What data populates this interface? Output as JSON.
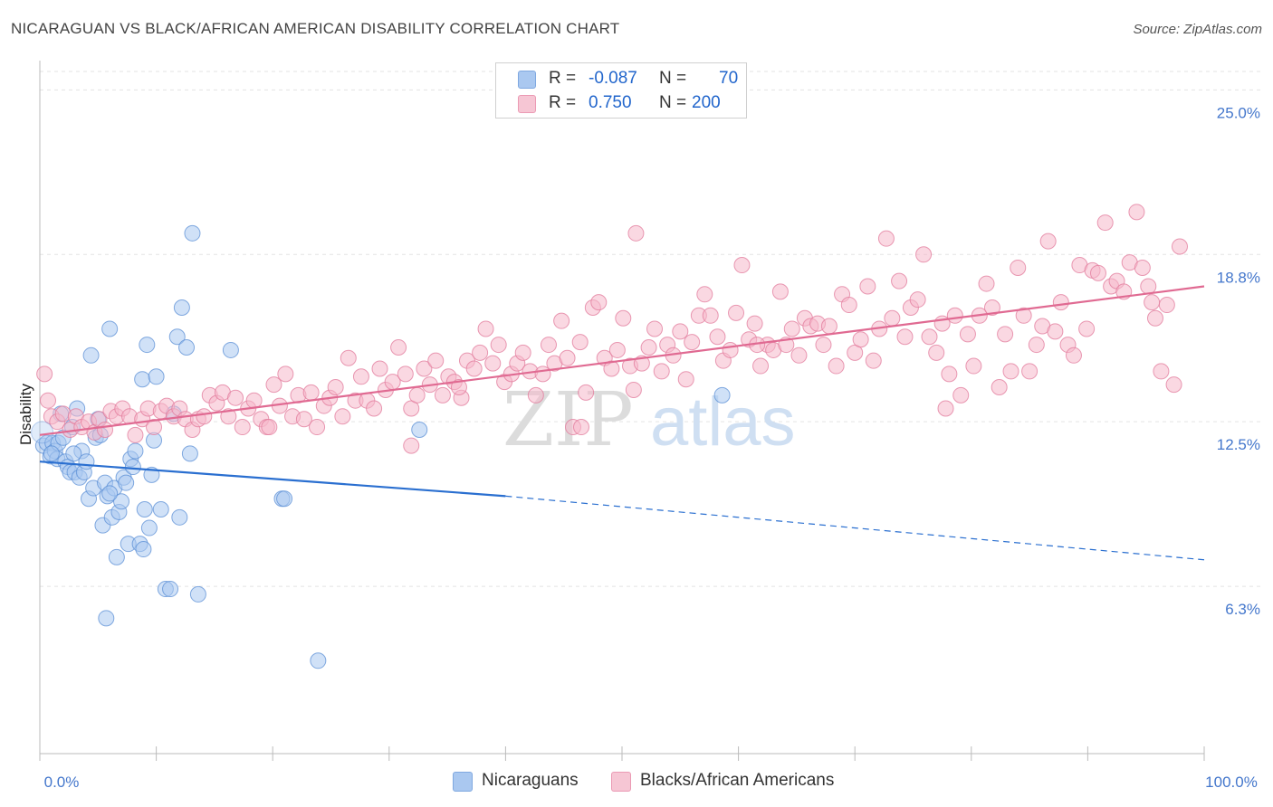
{
  "header": {
    "title": "NICARAGUAN VS BLACK/AFRICAN AMERICAN DISABILITY CORRELATION CHART",
    "source": "Source: ZipAtlas.com"
  },
  "watermark": {
    "zip": "ZIP",
    "atlas": "atlas"
  },
  "legend": {
    "rows": [
      {
        "r_label": "R =",
        "r_value": "-0.087",
        "n_label": "N =",
        "n_value": "70",
        "color": "#aac8f0"
      },
      {
        "r_label": "R =",
        "r_value": "0.750",
        "n_label": "N =",
        "n_value": "200",
        "color": "#f6b8cb"
      }
    ]
  },
  "bottom_legend": {
    "items": [
      {
        "label": "Nicaraguans",
        "color": "#aac8f0"
      },
      {
        "label": "Blacks/African Americans",
        "color": "#f6b8cb"
      }
    ]
  },
  "chart_data": {
    "type": "scatter",
    "title": "NICARAGUAN VS BLACK/AFRICAN AMERICAN DISABILITY CORRELATION CHART",
    "xlabel": "",
    "ylabel": "Disability",
    "xlim": [
      0,
      100
    ],
    "ylim": [
      0,
      26
    ],
    "x_tick_labels": [
      "0.0%",
      "100.0%"
    ],
    "y_ticks": [
      6.3,
      12.5,
      18.8,
      25.0
    ],
    "y_tick_labels": [
      "6.3%",
      "12.5%",
      "18.8%",
      "25.0%"
    ],
    "grid": true,
    "legend_position": "top-center",
    "series": [
      {
        "name": "Nicaraguans",
        "color": "#5b8fd6",
        "fill": "#aac8f0",
        "R": -0.087,
        "N": 70,
        "trend": {
          "x0": 0,
          "y0": 11.0,
          "x1": 40,
          "y1": 9.7,
          "dash_to_x": 100,
          "dash_to_y": 7.3
        },
        "points": [
          [
            0.3,
            11.6
          ],
          [
            0.6,
            11.7
          ],
          [
            0.9,
            11.2
          ],
          [
            1.1,
            11.7
          ],
          [
            1.3,
            11.4
          ],
          [
            1.5,
            11.1
          ],
          [
            1.6,
            11.7
          ],
          [
            1.8,
            12.8
          ],
          [
            2.0,
            11.9
          ],
          [
            2.2,
            11.0
          ],
          [
            2.4,
            10.8
          ],
          [
            2.6,
            10.6
          ],
          [
            2.8,
            12.3
          ],
          [
            3.0,
            10.6
          ],
          [
            3.2,
            13.0
          ],
          [
            3.4,
            10.4
          ],
          [
            3.6,
            11.4
          ],
          [
            3.8,
            10.6
          ],
          [
            4.0,
            11.0
          ],
          [
            4.2,
            9.6
          ],
          [
            4.4,
            15.0
          ],
          [
            4.6,
            10.0
          ],
          [
            4.8,
            11.9
          ],
          [
            5.0,
            12.6
          ],
          [
            5.2,
            12.0
          ],
          [
            5.4,
            8.6
          ],
          [
            5.6,
            10.2
          ],
          [
            5.8,
            9.7
          ],
          [
            6.0,
            16.0
          ],
          [
            6.2,
            8.9
          ],
          [
            6.4,
            10.0
          ],
          [
            6.6,
            7.4
          ],
          [
            6.8,
            9.1
          ],
          [
            7.0,
            9.5
          ],
          [
            7.2,
            10.4
          ],
          [
            7.6,
            7.9
          ],
          [
            7.8,
            11.1
          ],
          [
            8.0,
            10.8
          ],
          [
            8.2,
            11.4
          ],
          [
            8.6,
            7.9
          ],
          [
            8.8,
            14.1
          ],
          [
            8.9,
            7.7
          ],
          [
            9.0,
            9.2
          ],
          [
            9.2,
            15.4
          ],
          [
            9.4,
            8.5
          ],
          [
            9.6,
            10.5
          ],
          [
            9.8,
            11.8
          ],
          [
            10.0,
            14.2
          ],
          [
            10.4,
            9.2
          ],
          [
            10.8,
            6.2
          ],
          [
            11.2,
            6.2
          ],
          [
            11.5,
            12.8
          ],
          [
            11.8,
            15.7
          ],
          [
            12.0,
            8.9
          ],
          [
            12.2,
            16.8
          ],
          [
            12.6,
            15.3
          ],
          [
            12.9,
            11.3
          ],
          [
            13.1,
            19.6
          ],
          [
            13.6,
            6.0
          ],
          [
            16.4,
            15.2
          ],
          [
            20.8,
            9.6
          ],
          [
            21.0,
            9.6
          ],
          [
            23.9,
            3.5
          ],
          [
            32.6,
            12.2
          ],
          [
            58.6,
            13.5
          ],
          [
            5.7,
            5.1
          ],
          [
            6.0,
            9.8
          ],
          [
            7.4,
            10.2
          ],
          [
            1.0,
            11.3
          ],
          [
            2.9,
            11.3
          ]
        ]
      },
      {
        "name": "Blacks/African Americans",
        "color": "#e2799b",
        "fill": "#f6b8cb",
        "R": 0.75,
        "N": 200,
        "trend": {
          "x0": 0,
          "y0": 12.0,
          "x1": 100,
          "y1": 17.6
        },
        "points": [
          [
            0.4,
            14.3
          ],
          [
            0.7,
            13.3
          ],
          [
            1.0,
            12.7
          ],
          [
            1.5,
            12.5
          ],
          [
            2.0,
            12.8
          ],
          [
            2.6,
            12.2
          ],
          [
            3.1,
            12.7
          ],
          [
            3.6,
            12.3
          ],
          [
            4.2,
            12.5
          ],
          [
            4.7,
            12.1
          ],
          [
            5.1,
            12.6
          ],
          [
            5.6,
            12.2
          ],
          [
            6.1,
            12.9
          ],
          [
            6.6,
            12.7
          ],
          [
            7.1,
            13.0
          ],
          [
            7.7,
            12.7
          ],
          [
            8.2,
            12.0
          ],
          [
            8.8,
            12.6
          ],
          [
            9.3,
            13.0
          ],
          [
            9.8,
            12.3
          ],
          [
            10.4,
            12.9
          ],
          [
            10.9,
            13.1
          ],
          [
            11.5,
            12.7
          ],
          [
            12.0,
            13.0
          ],
          [
            12.5,
            12.6
          ],
          [
            13.1,
            12.2
          ],
          [
            13.6,
            12.6
          ],
          [
            14.1,
            12.7
          ],
          [
            14.6,
            13.5
          ],
          [
            15.2,
            13.2
          ],
          [
            15.7,
            13.6
          ],
          [
            16.2,
            12.7
          ],
          [
            16.8,
            13.4
          ],
          [
            17.4,
            12.3
          ],
          [
            17.9,
            13.0
          ],
          [
            18.4,
            13.3
          ],
          [
            19.0,
            12.6
          ],
          [
            19.5,
            12.3
          ],
          [
            20.1,
            13.9
          ],
          [
            20.6,
            13.1
          ],
          [
            21.1,
            14.3
          ],
          [
            21.7,
            12.7
          ],
          [
            22.2,
            13.5
          ],
          [
            22.7,
            12.6
          ],
          [
            23.3,
            13.6
          ],
          [
            23.8,
            12.3
          ],
          [
            24.4,
            13.1
          ],
          [
            24.9,
            13.4
          ],
          [
            25.4,
            13.8
          ],
          [
            26.0,
            12.7
          ],
          [
            26.5,
            14.9
          ],
          [
            27.1,
            13.3
          ],
          [
            27.6,
            14.2
          ],
          [
            28.1,
            13.3
          ],
          [
            28.7,
            13.0
          ],
          [
            29.2,
            14.5
          ],
          [
            29.7,
            13.7
          ],
          [
            30.3,
            14.0
          ],
          [
            30.8,
            15.3
          ],
          [
            31.4,
            14.3
          ],
          [
            31.9,
            13.0
          ],
          [
            32.4,
            13.5
          ],
          [
            33.0,
            14.5
          ],
          [
            33.5,
            13.9
          ],
          [
            34.0,
            14.8
          ],
          [
            34.6,
            13.5
          ],
          [
            35.1,
            14.2
          ],
          [
            35.6,
            14.0
          ],
          [
            36.2,
            13.4
          ],
          [
            36.7,
            14.8
          ],
          [
            37.3,
            14.5
          ],
          [
            37.8,
            15.1
          ],
          [
            38.3,
            16.0
          ],
          [
            38.9,
            14.7
          ],
          [
            39.4,
            15.4
          ],
          [
            39.9,
            14.0
          ],
          [
            40.5,
            14.3
          ],
          [
            41.0,
            14.7
          ],
          [
            41.5,
            15.1
          ],
          [
            42.1,
            14.4
          ],
          [
            42.6,
            13.5
          ],
          [
            43.2,
            14.3
          ],
          [
            43.7,
            15.4
          ],
          [
            44.2,
            14.7
          ],
          [
            44.8,
            16.3
          ],
          [
            45.3,
            14.9
          ],
          [
            45.8,
            12.3
          ],
          [
            46.4,
            15.5
          ],
          [
            46.9,
            13.6
          ],
          [
            47.5,
            16.8
          ],
          [
            48.0,
            17.0
          ],
          [
            48.5,
            14.9
          ],
          [
            49.1,
            14.5
          ],
          [
            49.6,
            15.2
          ],
          [
            50.1,
            16.4
          ],
          [
            50.7,
            14.6
          ],
          [
            51.2,
            19.6
          ],
          [
            51.7,
            14.7
          ],
          [
            52.3,
            15.3
          ],
          [
            52.8,
            16.0
          ],
          [
            53.4,
            14.4
          ],
          [
            53.9,
            15.4
          ],
          [
            54.4,
            15.0
          ],
          [
            55.0,
            15.9
          ],
          [
            55.5,
            14.1
          ],
          [
            56.0,
            15.5
          ],
          [
            56.6,
            16.5
          ],
          [
            57.1,
            17.3
          ],
          [
            57.6,
            16.5
          ],
          [
            58.2,
            15.7
          ],
          [
            58.7,
            14.8
          ],
          [
            59.3,
            15.2
          ],
          [
            59.8,
            16.6
          ],
          [
            60.3,
            18.4
          ],
          [
            60.9,
            15.6
          ],
          [
            61.4,
            16.2
          ],
          [
            61.9,
            14.6
          ],
          [
            62.5,
            15.4
          ],
          [
            63.0,
            15.2
          ],
          [
            63.6,
            17.4
          ],
          [
            64.1,
            15.4
          ],
          [
            64.6,
            16.0
          ],
          [
            65.2,
            15.0
          ],
          [
            65.7,
            16.4
          ],
          [
            66.2,
            16.1
          ],
          [
            66.8,
            16.2
          ],
          [
            67.3,
            15.4
          ],
          [
            67.8,
            16.1
          ],
          [
            68.4,
            14.6
          ],
          [
            68.9,
            17.3
          ],
          [
            69.5,
            16.9
          ],
          [
            70.0,
            15.1
          ],
          [
            70.5,
            15.6
          ],
          [
            71.1,
            17.6
          ],
          [
            71.6,
            14.8
          ],
          [
            72.1,
            16.0
          ],
          [
            72.7,
            19.4
          ],
          [
            73.2,
            16.4
          ],
          [
            73.8,
            17.8
          ],
          [
            74.3,
            15.7
          ],
          [
            74.8,
            16.8
          ],
          [
            75.4,
            17.1
          ],
          [
            75.9,
            18.8
          ],
          [
            76.4,
            15.7
          ],
          [
            77.0,
            15.1
          ],
          [
            77.5,
            16.2
          ],
          [
            78.1,
            14.3
          ],
          [
            78.6,
            16.5
          ],
          [
            79.1,
            13.5
          ],
          [
            79.7,
            15.8
          ],
          [
            80.2,
            14.6
          ],
          [
            80.7,
            16.5
          ],
          [
            81.3,
            17.7
          ],
          [
            81.8,
            16.8
          ],
          [
            82.4,
            13.8
          ],
          [
            82.9,
            15.8
          ],
          [
            83.4,
            14.4
          ],
          [
            84.0,
            18.3
          ],
          [
            84.5,
            16.5
          ],
          [
            85.0,
            14.4
          ],
          [
            85.6,
            15.4
          ],
          [
            86.1,
            16.1
          ],
          [
            86.6,
            19.3
          ],
          [
            87.2,
            15.9
          ],
          [
            87.7,
            17.0
          ],
          [
            88.3,
            15.4
          ],
          [
            88.8,
            15.0
          ],
          [
            89.3,
            18.4
          ],
          [
            89.9,
            16.0
          ],
          [
            90.4,
            18.2
          ],
          [
            90.9,
            18.1
          ],
          [
            91.5,
            20.0
          ],
          [
            92.0,
            17.6
          ],
          [
            92.5,
            17.8
          ],
          [
            93.1,
            17.4
          ],
          [
            93.6,
            18.5
          ],
          [
            94.2,
            20.4
          ],
          [
            94.7,
            18.3
          ],
          [
            95.2,
            17.6
          ],
          [
            95.8,
            16.4
          ],
          [
            96.3,
            14.4
          ],
          [
            96.8,
            16.9
          ],
          [
            97.4,
            13.9
          ],
          [
            97.9,
            19.1
          ],
          [
            19.7,
            12.3
          ],
          [
            31.9,
            11.6
          ],
          [
            51.0,
            13.7
          ],
          [
            46.5,
            12.3
          ],
          [
            36.0,
            13.8
          ],
          [
            61.6,
            15.4
          ],
          [
            77.8,
            13.0
          ],
          [
            95.5,
            17.0
          ]
        ]
      }
    ]
  }
}
